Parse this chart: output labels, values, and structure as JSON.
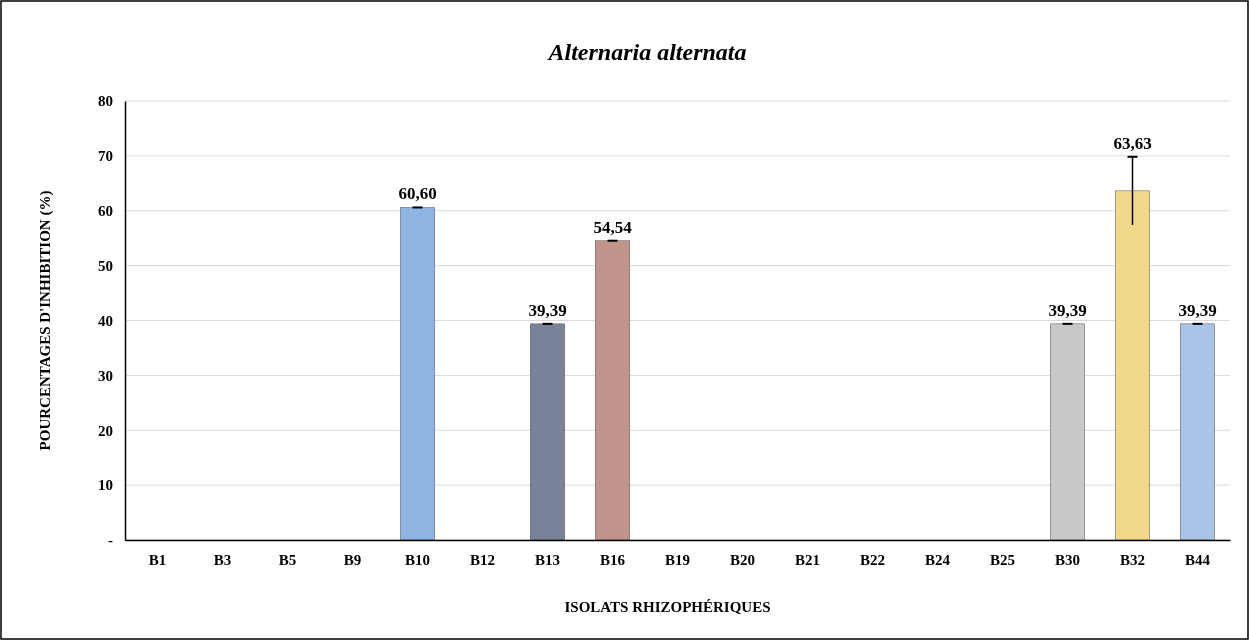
{
  "chart_data": {
    "type": "bar",
    "title": "Alternaria alternata",
    "xlabel": "ISOLATS RHIZOPHÉRIQUES",
    "ylabel": "POURCENTAGES D'INHIBITION (%)",
    "categories": [
      "B1",
      "B3",
      "B5",
      "B9",
      "B10",
      "B12",
      "B13",
      "B16",
      "B19",
      "B20",
      "B21",
      "B22",
      "B24",
      "B25",
      "B30",
      "B32",
      "B44"
    ],
    "values": [
      0,
      0,
      0,
      0,
      60.6,
      0,
      39.39,
      54.54,
      0,
      0,
      0,
      0,
      0,
      0,
      39.39,
      63.63,
      39.39
    ],
    "colors": [
      "#8db4e2",
      "#8db4e2",
      "#8db4e2",
      "#8db4e2",
      "#8db4e2",
      "#8db4e2",
      "#7a8299",
      "#c0948a",
      "#8db4e2",
      "#8db4e2",
      "#8db4e2",
      "#8db4e2",
      "#8db4e2",
      "#8db4e2",
      "#c8c8c8",
      "#f2d88a",
      "#a9c4e6"
    ],
    "errors": [
      null,
      null,
      null,
      null,
      0,
      null,
      0,
      0,
      null,
      null,
      null,
      null,
      null,
      null,
      0,
      6.2,
      0
    ],
    "value_labels": [
      null,
      null,
      null,
      null,
      "60,60",
      null,
      "39,39",
      "54,54",
      null,
      null,
      null,
      null,
      null,
      null,
      "39,39",
      "63,63",
      "39,39"
    ],
    "ylim": [
      0,
      80
    ],
    "yticks": [
      {
        "value": 0,
        "label": "-"
      },
      10,
      20,
      30,
      40,
      50,
      60,
      70,
      80
    ],
    "grid": "y"
  }
}
